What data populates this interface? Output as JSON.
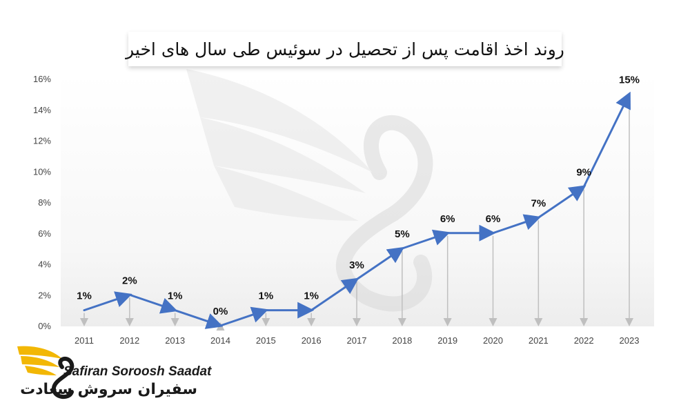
{
  "title": "روند اخذ اقامت پس از تحصیل در سوئیس طی سال های اخیر",
  "logo": {
    "en": "Safiran Soroosh Saadat",
    "fa": "سفیران سروش سعادت",
    "colors": {
      "wing": "#f2b705",
      "text": "#1a1a1a"
    }
  },
  "chart_data": {
    "type": "line",
    "title": "روند اخذ اقامت پس از تحصیل در سوئیس طی سال های اخیر",
    "xlabel": "",
    "ylabel": "",
    "categories": [
      "2011",
      "2012",
      "2013",
      "2014",
      "2015",
      "2016",
      "2017",
      "2018",
      "2019",
      "2020",
      "2021",
      "2022",
      "2023"
    ],
    "series": [
      {
        "values": [
          1,
          2,
          1,
          0,
          1,
          1,
          3,
          5,
          6,
          6,
          7,
          9,
          15
        ],
        "color": "#4472c4"
      }
    ],
    "data_labels": [
      "1%",
      "2%",
      "1%",
      "0%",
      "1%",
      "1%",
      "3%",
      "5%",
      "6%",
      "6%",
      "7%",
      "9%",
      "15%"
    ],
    "ylim": [
      0,
      16
    ],
    "yticks": [
      "0%",
      "2%",
      "4%",
      "6%",
      "8%",
      "10%",
      "12%",
      "14%",
      "16%"
    ],
    "drop_lines": true,
    "grid": false,
    "legend": "none"
  }
}
